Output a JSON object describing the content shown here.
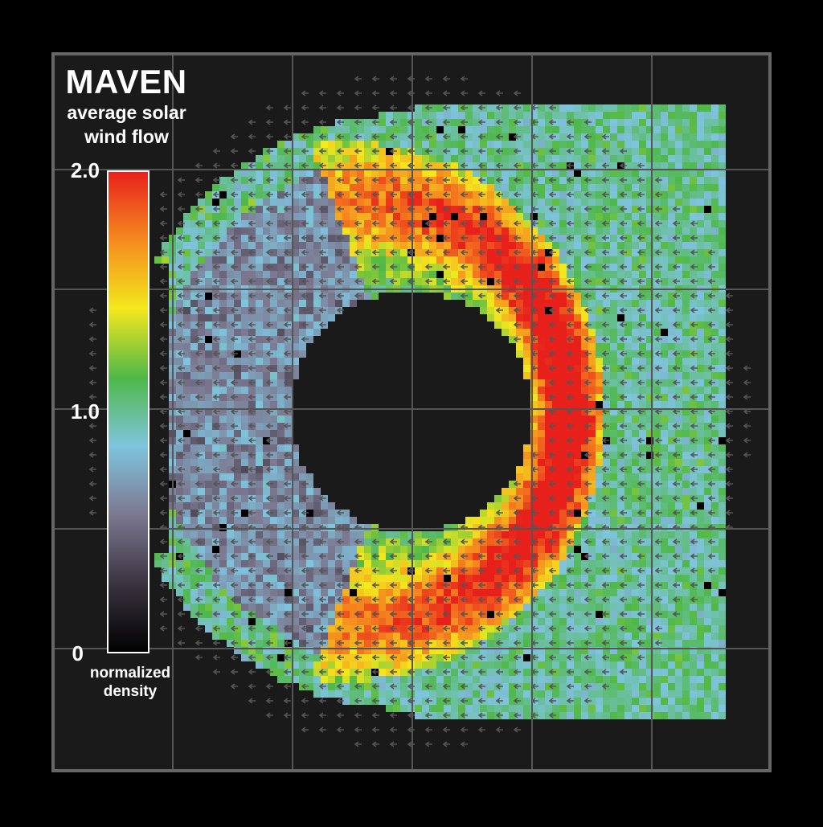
{
  "chart_data": {
    "type": "heatmap",
    "title": "MAVEN",
    "subtitle": [
      "average solar",
      "wind flow"
    ],
    "colorbar": {
      "label": [
        "normalized",
        "density"
      ],
      "ticks": [
        "2.0",
        "1.0",
        "0"
      ],
      "range": [
        0,
        2.0
      ],
      "colormap": [
        "#000000",
        "#3a3340",
        "#7c7890",
        "#7fc4de",
        "#4fb848",
        "#f4e81e",
        "#f58a1f",
        "#e8201c"
      ],
      "outline_color": "#ffffff"
    },
    "flow_direction": "right-to-left",
    "shape": "annulus, open on left side",
    "grid": true,
    "background_color": "#1a1a1a",
    "grid_color": "#555555"
  }
}
